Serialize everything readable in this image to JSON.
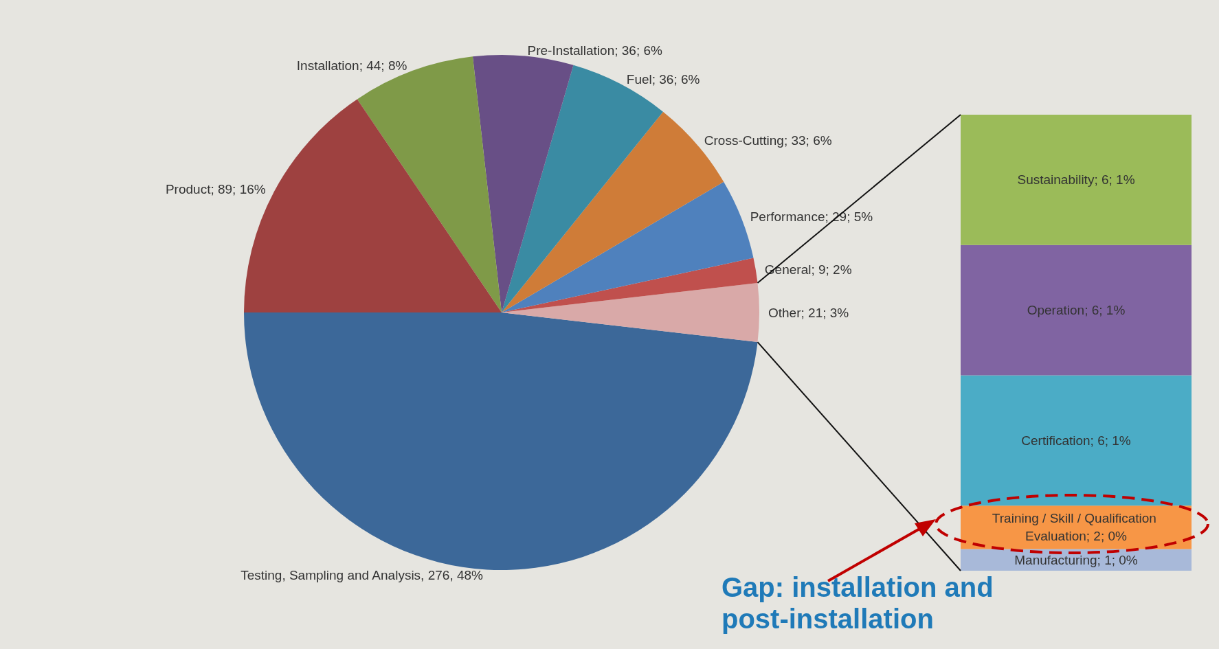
{
  "chart_data": [
    {
      "type": "pie",
      "categories": [
        "Testing, Sampling and Analysis",
        "Other",
        "General",
        "Performance",
        "Cross-Cutting",
        "Fuel",
        "Pre-Installation",
        "Installation",
        "Product"
      ],
      "values": [
        276,
        21,
        9,
        29,
        33,
        36,
        36,
        44,
        89
      ],
      "colors": [
        "#3c6899",
        "#d9a9a8",
        "#c0504d",
        "#4f81bd",
        "#cf7c38",
        "#3a8ba3",
        "#684f86",
        "#7f9a48",
        "#9e4140"
      ],
      "value_labels": [
        ", 276, 48%",
        "; 21; 3%",
        "; 9; 2%",
        "; 29; 5%",
        "; 33; 6%",
        "; 36; 6%",
        "; 36; 6%",
        "; 44; 8%",
        "; 89; 16%"
      ]
    },
    {
      "type": "bar",
      "stacked": true,
      "categories": [
        null
      ],
      "series": [
        {
          "name": "Manufacturing",
          "color": "#a8b9d9",
          "values": [
            1
          ],
          "value_labels": [
            "; 1; 0%"
          ]
        },
        {
          "name": "Training / Skill / Qualification Evaluation",
          "color": "#f79646",
          "values": [
            2
          ],
          "value_labels": [
            "; 2; 0%"
          ]
        },
        {
          "name": "Certification",
          "color": "#4bacc6",
          "values": [
            6
          ],
          "value_labels": [
            "; 6; 1%"
          ]
        },
        {
          "name": "Operation",
          "color": "#8064a2",
          "values": [
            6
          ],
          "value_labels": [
            "; 6; 1%"
          ]
        },
        {
          "name": "Sustainability",
          "color": "#9bbb59",
          "values": [
            6
          ],
          "value_labels": [
            "; 6; 1%"
          ]
        }
      ],
      "annotations": [
        "Gap: installation and post-installation"
      ]
    }
  ]
}
